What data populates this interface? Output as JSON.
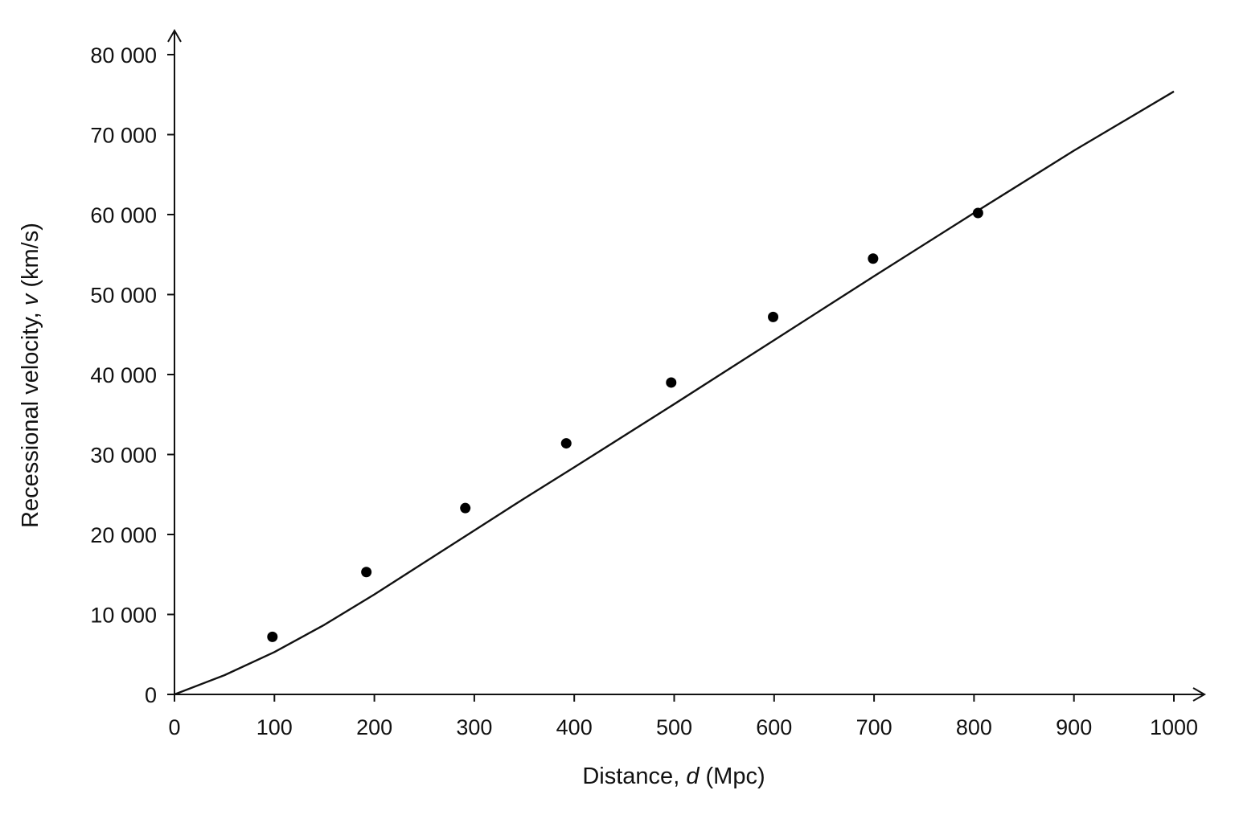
{
  "chart_data": {
    "type": "scatter",
    "xlabel_parts": [
      "Distance, ",
      "d",
      " (Mpc)"
    ],
    "ylabel_parts": [
      "Recessional velocity, ",
      "v",
      " (km/s)"
    ],
    "xlim": [
      0,
      1000
    ],
    "ylim": [
      0,
      80000
    ],
    "xticks": [
      0,
      100,
      200,
      300,
      400,
      500,
      600,
      700,
      800,
      900,
      1000
    ],
    "xtick_labels": [
      "0",
      "100",
      "200",
      "300",
      "400",
      "500",
      "600",
      "700",
      "800",
      "900",
      "1000"
    ],
    "yticks": [
      0,
      10000,
      20000,
      30000,
      40000,
      50000,
      60000,
      70000,
      80000
    ],
    "ytick_labels": [
      "0",
      "10 000",
      "20 000",
      "30 000",
      "40 000",
      "50 000",
      "60 000",
      "70 000",
      "80 000"
    ],
    "grid": false,
    "points": {
      "x": [
        98,
        192,
        291,
        392,
        497,
        599,
        699,
        804
      ],
      "y": [
        7200,
        15300,
        23300,
        31400,
        39000,
        47200,
        54500,
        60200
      ]
    },
    "curve": {
      "x": [
        0,
        50,
        100,
        150,
        200,
        250,
        300,
        350,
        400,
        500,
        600,
        700,
        800,
        900,
        1000
      ],
      "y": [
        0,
        2400,
        5300,
        8700,
        12500,
        16500,
        20500,
        24500,
        28400,
        36300,
        44300,
        52300,
        60200,
        68000,
        75400
      ]
    },
    "colors": {
      "axis": "#111111",
      "marker": "#000000",
      "curve": "#111111"
    }
  }
}
